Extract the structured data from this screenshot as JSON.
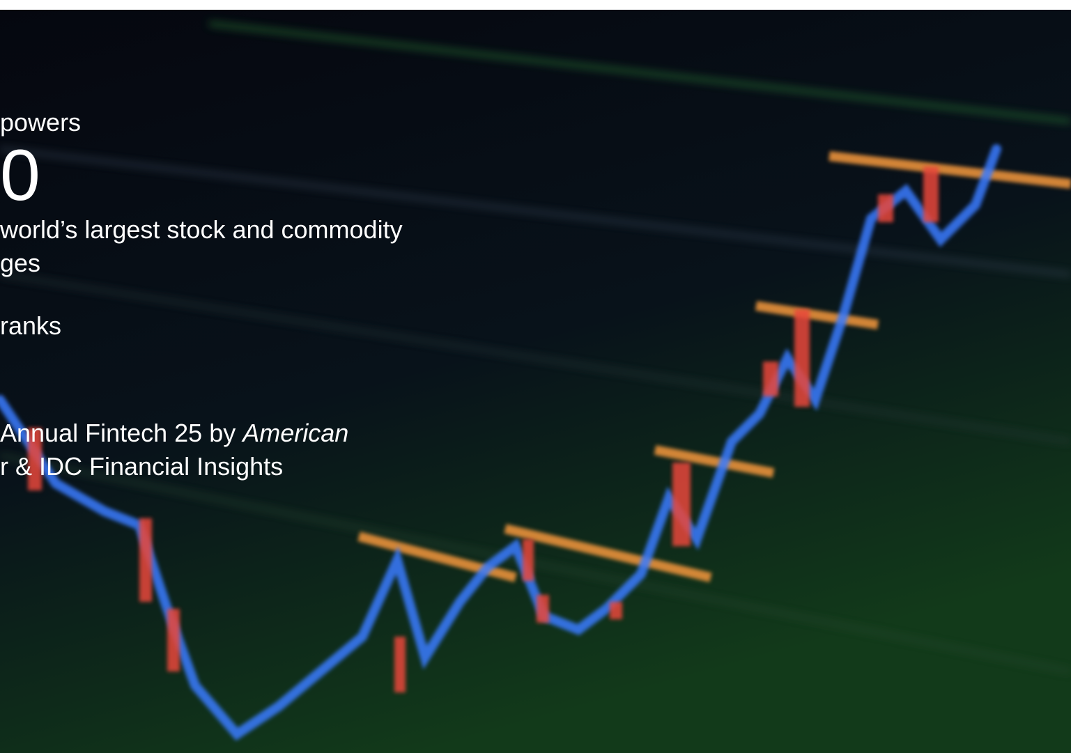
{
  "stats": [
    {
      "label": "powers",
      "value": "0",
      "description": [
        "world’s largest stock and commodity",
        "ges"
      ]
    },
    {
      "label": "ranks"
    },
    {
      "description": [
        "Annual Fintech 25 by ",
        "American",
        "r & IDC Financial Insights"
      ]
    }
  ]
}
